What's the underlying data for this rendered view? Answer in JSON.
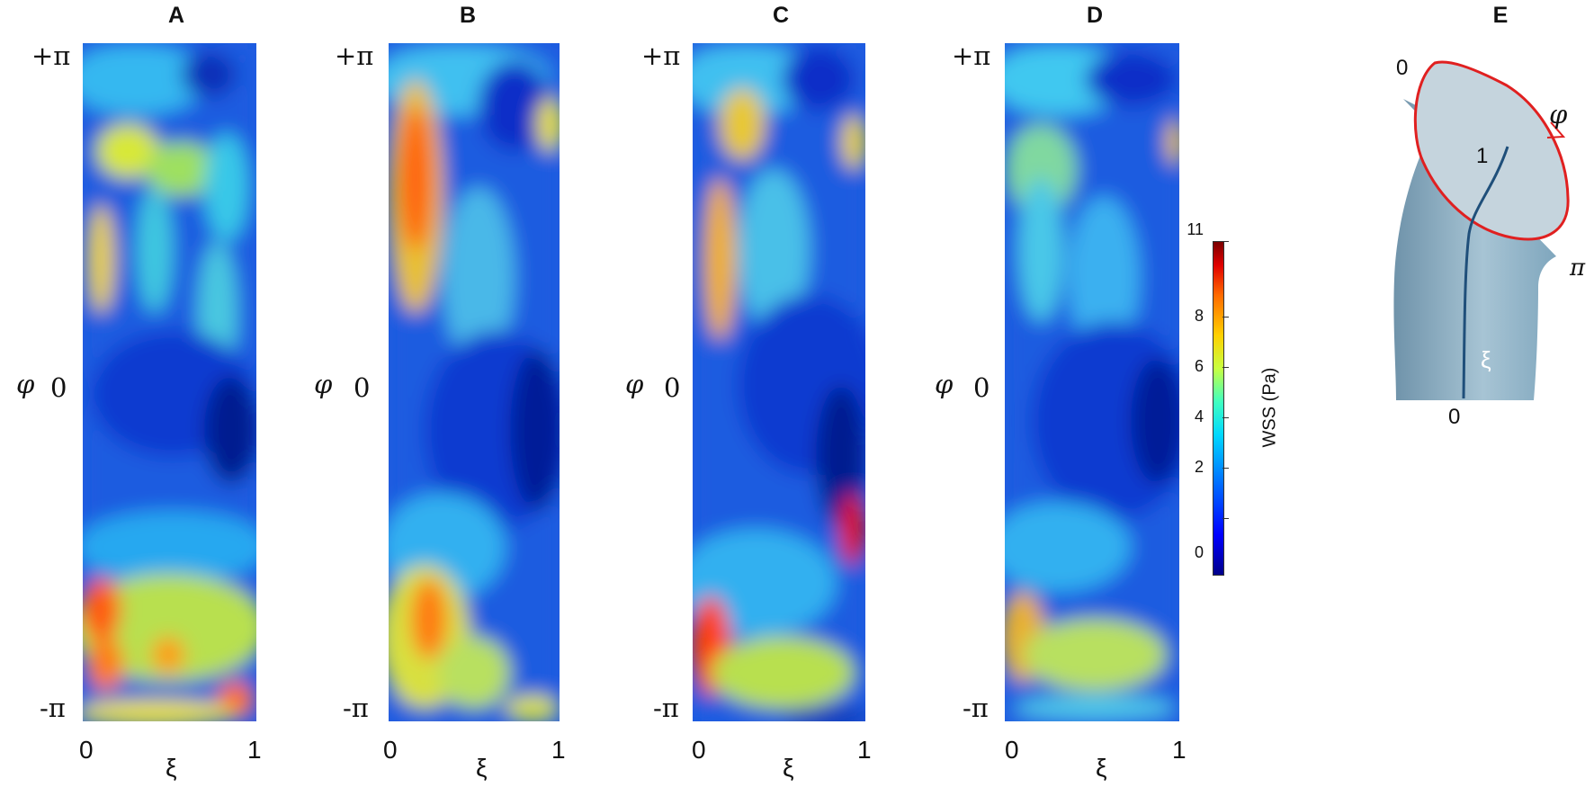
{
  "panels": [
    {
      "letter": "A",
      "y_top": "+π",
      "y_mid": "0",
      "y_bottom": "-π",
      "x_left": "0",
      "x_right": "1",
      "y_axis_label": "φ",
      "x_axis_label": "ξ"
    },
    {
      "letter": "B",
      "y_top": "+π",
      "y_mid": "0",
      "y_bottom": "-π",
      "x_left": "0",
      "x_right": "1",
      "y_axis_label": "φ",
      "x_axis_label": "ξ"
    },
    {
      "letter": "C",
      "y_top": "+π",
      "y_mid": "0",
      "y_bottom": "-π",
      "x_left": "0",
      "x_right": "1",
      "y_axis_label": "φ",
      "x_axis_label": "ξ"
    },
    {
      "letter": "D",
      "y_top": "+π",
      "y_mid": "0",
      "y_bottom": "-π",
      "x_left": "0",
      "x_right": "1",
      "y_axis_label": "φ",
      "x_axis_label": "ξ"
    }
  ],
  "colorbar": {
    "title": "WSS (Pa)",
    "ticks": [
      "11",
      "8",
      "6",
      "4",
      "2",
      "0"
    ],
    "colormap": "jet"
  },
  "panel_e": {
    "letter": "E",
    "label_top_zero": "0",
    "label_phi": "φ",
    "label_one": "1",
    "label_pi": "π",
    "label_xi": "ξ",
    "label_bottom_zero": "0",
    "outline_color": "#e02020",
    "vessel_color": "#7fa6bd",
    "centerline_color": "#1f4f7a"
  }
}
